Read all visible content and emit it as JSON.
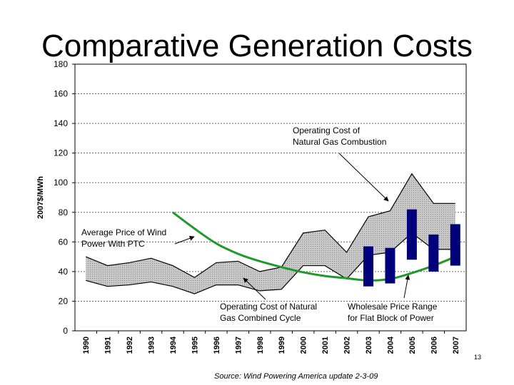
{
  "slide": {
    "title": "Comparative Generation Costs",
    "page_number": "13",
    "source": "Source: Wind Powering America update 2-3-09"
  },
  "colors": {
    "wind_line": "#1f9a2a",
    "band_fill": "#c8c8c8",
    "wholesale_bar": "#00007a",
    "grid": "#666666"
  },
  "chart_data": {
    "type": "line",
    "title": "",
    "xlabel": "",
    "ylabel": "2007$/MWh",
    "ylim": [
      0,
      180
    ],
    "yticks": [
      0,
      20,
      40,
      60,
      80,
      100,
      120,
      140,
      160,
      180
    ],
    "categories": [
      "1990",
      "1991",
      "1992",
      "1993",
      "1994",
      "1995",
      "1996",
      "1997",
      "1998",
      "1999",
      "2000",
      "2001",
      "2002",
      "2003",
      "2004",
      "2005",
      "2006",
      "2007"
    ],
    "series": [
      {
        "name": "Operating Cost of Natural Gas Combustion (upper bound)",
        "kind": "band-upper",
        "values": [
          50,
          44,
          46,
          49,
          44,
          36,
          46,
          47,
          40,
          43,
          66,
          68,
          53,
          77,
          81,
          106,
          86,
          86
        ]
      },
      {
        "name": "Operating Cost of Natural Gas Combined Cycle (lower bound)",
        "kind": "band-lower",
        "values": [
          34,
          30,
          31,
          33,
          30,
          25,
          31,
          31,
          27,
          28,
          44,
          44,
          35,
          51,
          53,
          66,
          55,
          55
        ]
      },
      {
        "name": "Average Price of Wind Power With PTC",
        "kind": "line",
        "x": [
          "1994",
          "1995",
          "1996",
          "1997",
          "1998",
          "1999",
          "2000",
          "2001",
          "2002",
          "2003",
          "2004",
          "2005",
          "2006",
          "2007"
        ],
        "values": [
          80,
          69,
          59,
          52,
          47,
          43,
          39.5,
          37,
          35.5,
          34,
          35,
          39,
          44,
          50
        ]
      },
      {
        "name": "Wholesale Price Range for Flat Block of Power",
        "kind": "range-bar",
        "x": [
          "2003",
          "2004",
          "2005",
          "2006",
          "2007"
        ],
        "low": [
          30,
          32,
          48,
          40,
          44
        ],
        "high": [
          57,
          56,
          82,
          65,
          72
        ]
      }
    ],
    "annotations": {
      "combustion": [
        "Operating Cost of",
        "Natural Gas Combustion"
      ],
      "wind": [
        "Average Price of Wind",
        "Power With PTC"
      ],
      "combined": [
        "Operating Cost of Natural",
        "Gas Combined Cycle"
      ],
      "wholesale": [
        "Wholesale Price Range",
        "for Flat Block of Power"
      ]
    }
  }
}
